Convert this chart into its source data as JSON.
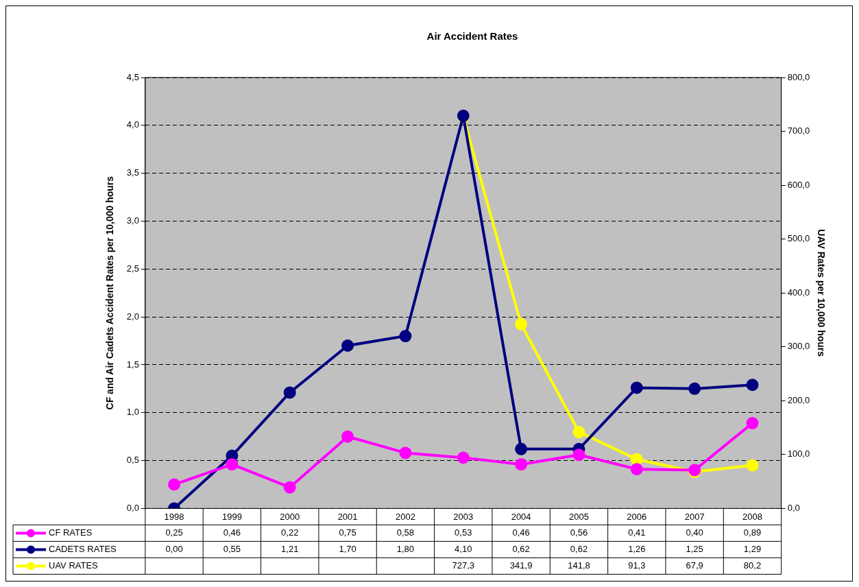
{
  "chart_data": {
    "type": "line",
    "title": "Air Accident Rates",
    "ylabel": "CF and Air Cadets Accident Rates per 10,000 hours",
    "y2label": "UAV Rates per 10,000 hours",
    "categories": [
      "1998",
      "1999",
      "2000",
      "2001",
      "2002",
      "2003",
      "2004",
      "2005",
      "2006",
      "2007",
      "2008"
    ],
    "series": [
      {
        "name": "CF RATES",
        "color": "#ff00ff",
        "values": [
          0.25,
          0.46,
          0.22,
          0.75,
          0.58,
          0.53,
          0.46,
          0.56,
          0.41,
          0.4,
          0.89
        ],
        "value_labels": [
          "0,25",
          "0,46",
          "0,22",
          "0,75",
          "0,58",
          "0,53",
          "0,46",
          "0,56",
          "0,41",
          "0,40",
          "0,89"
        ]
      },
      {
        "name": "CADETS RATES",
        "color": "#000080",
        "values": [
          0.0,
          0.55,
          1.21,
          1.7,
          1.8,
          4.1,
          0.62,
          0.62,
          1.26,
          1.25,
          1.29
        ],
        "value_labels": [
          "0,00",
          "0,55",
          "1,21",
          "1,70",
          "1,80",
          "4,10",
          "0,62",
          "0,62",
          "1,26",
          "1,25",
          "1,29"
        ]
      },
      {
        "name": "UAV RATES",
        "color": "#ffff00",
        "axis": "y2",
        "values": [
          null,
          null,
          null,
          null,
          null,
          727.3,
          341.9,
          141.8,
          91.3,
          67.9,
          80.2
        ],
        "value_labels": [
          null,
          null,
          null,
          null,
          null,
          "727,3",
          "341,9",
          "141,8",
          "91,3",
          "67,9",
          "80,2"
        ]
      }
    ],
    "ylim": [
      0,
      4.5
    ],
    "yticks": [
      {
        "value": 0,
        "label": "0,0"
      },
      {
        "value": 0.5,
        "label": "0,5"
      },
      {
        "value": 1,
        "label": "1,0"
      },
      {
        "value": 1.5,
        "label": "1,5"
      },
      {
        "value": 2,
        "label": "2,0"
      },
      {
        "value": 2.5,
        "label": "2,5"
      },
      {
        "value": 3,
        "label": "3,0"
      },
      {
        "value": 3.5,
        "label": "3,5"
      },
      {
        "value": 4,
        "label": "4,0"
      },
      {
        "value": 4.5,
        "label": "4,5"
      }
    ],
    "y2lim": [
      0,
      800
    ],
    "y2ticks": [
      {
        "value": 0,
        "label": "0,0"
      },
      {
        "value": 100,
        "label": "100,0"
      },
      {
        "value": 200,
        "label": "200,0"
      },
      {
        "value": 300,
        "label": "300,0"
      },
      {
        "value": 400,
        "label": "400,0"
      },
      {
        "value": 500,
        "label": "500,0"
      },
      {
        "value": 600,
        "label": "600,0"
      },
      {
        "value": 700,
        "label": "700,0"
      },
      {
        "value": 800,
        "label": "800,0"
      }
    ],
    "grid": "y",
    "marker": "circle",
    "line_style": "solid",
    "legend": "bottom left"
  }
}
